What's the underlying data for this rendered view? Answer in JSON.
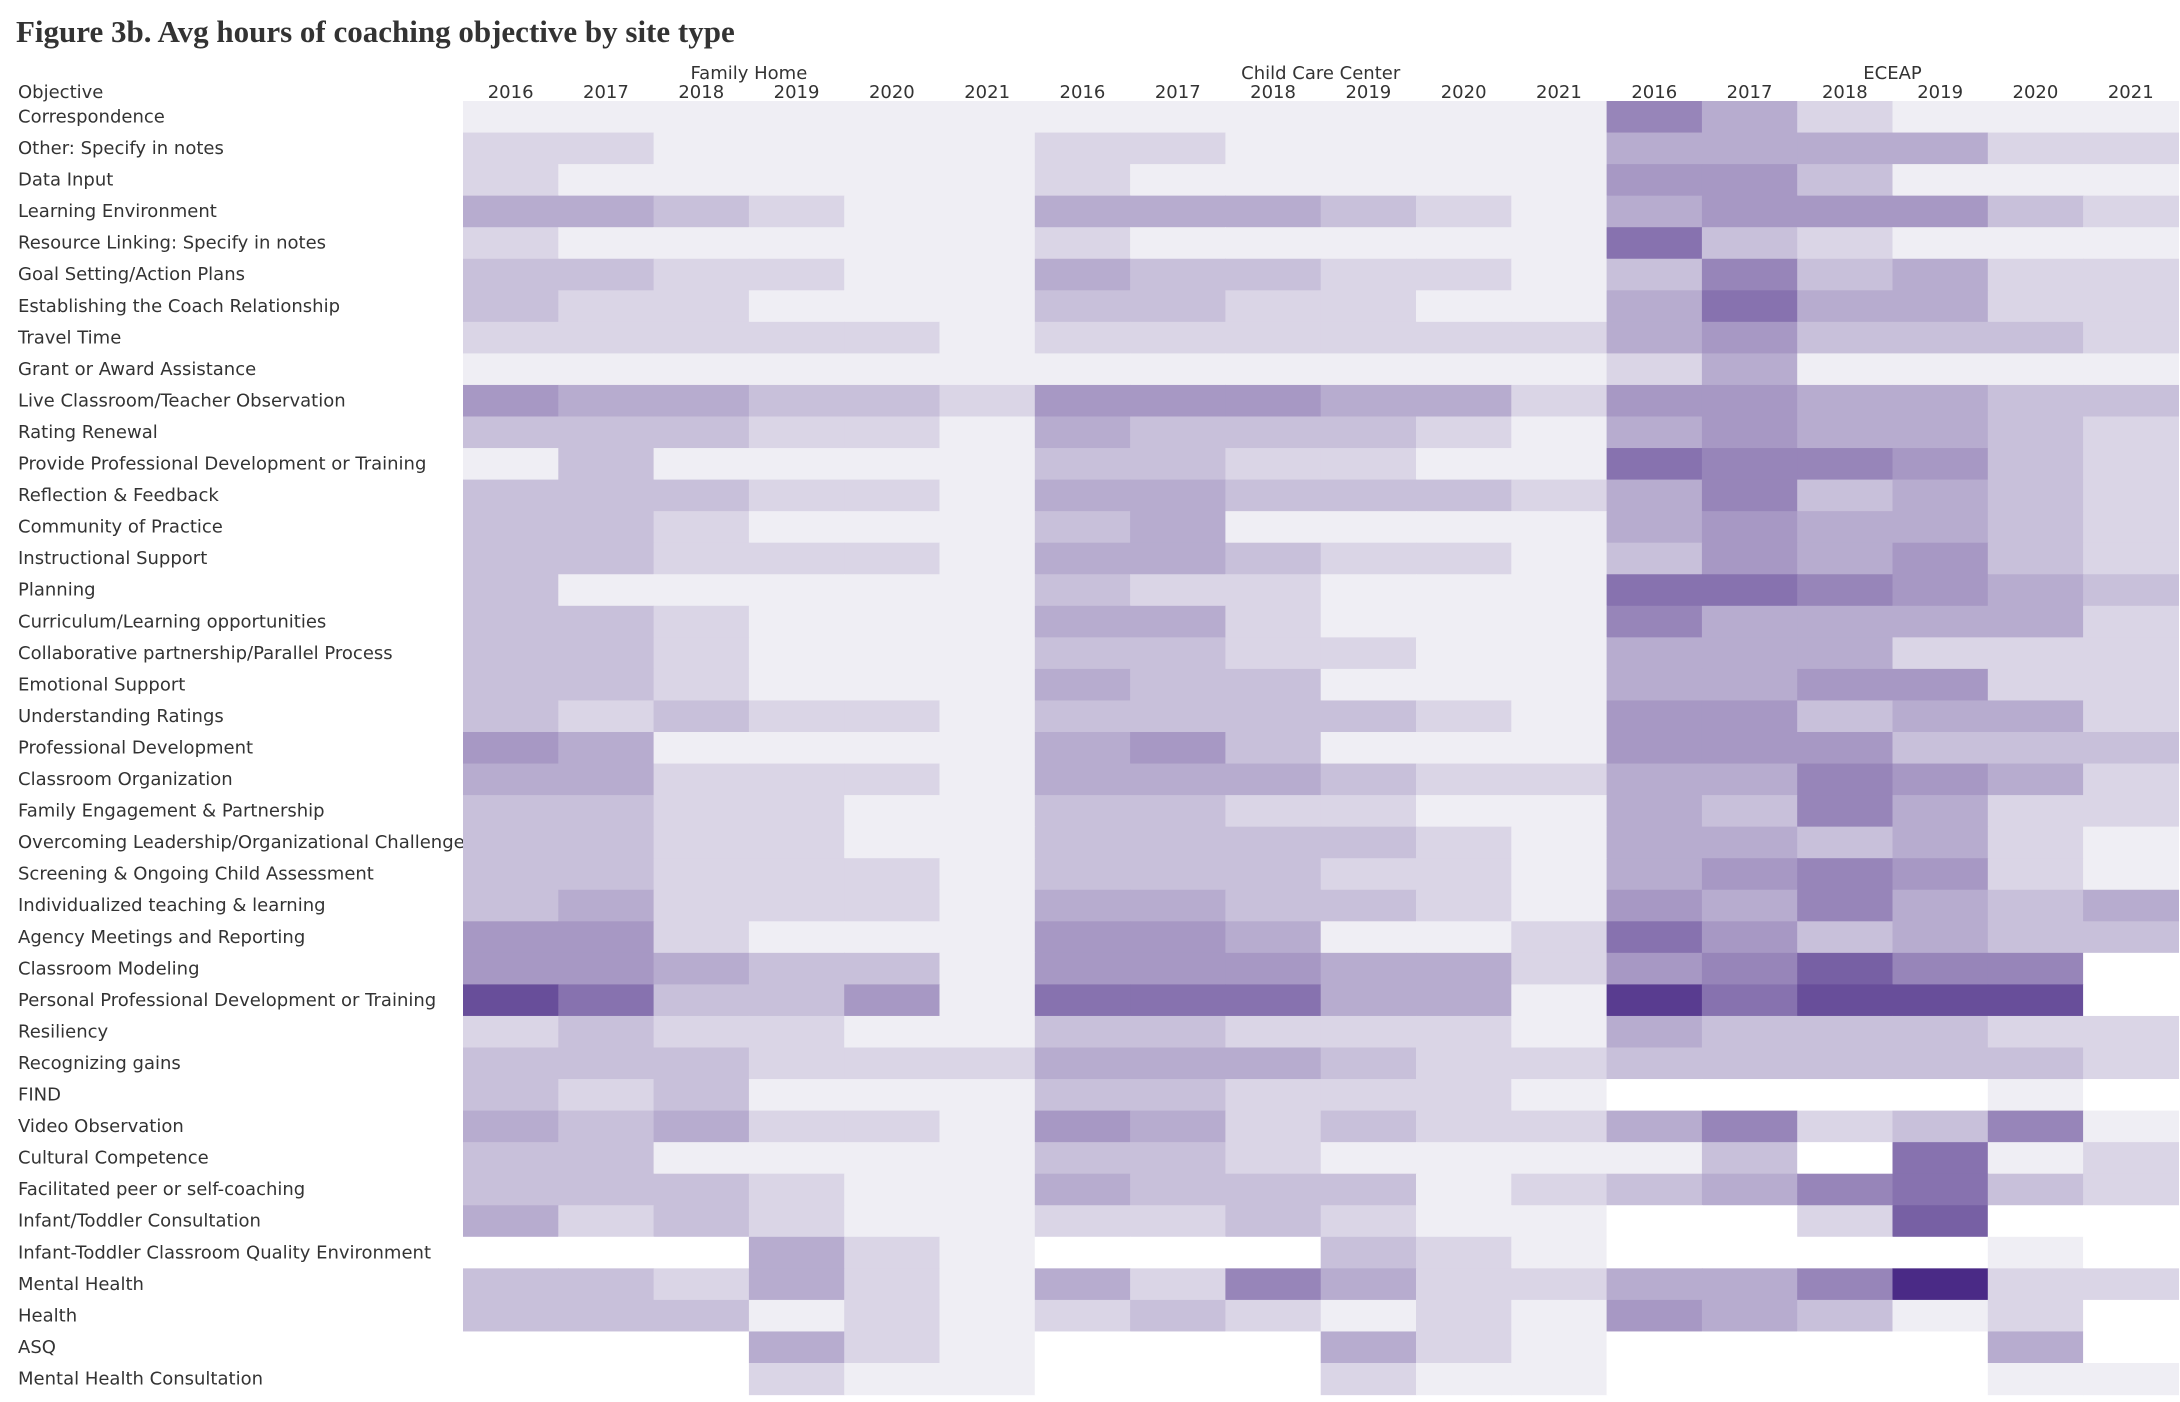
{
  "title": "Figure 3b. Avg hours of coaching objective by site type",
  "chart_data": {
    "type": "heatmap",
    "title": "Figure 3b. Avg hours of coaching objective by site type",
    "row_header": "Objective",
    "groups": [
      "Family Home",
      "Child Care Center",
      "ECEAP"
    ],
    "years": [
      "2016",
      "2017",
      "2018",
      "2019",
      "2020",
      "2021"
    ],
    "color_scale": {
      "low": "#efeef4",
      "high": "#4a2a86",
      "missing": "#ffffff"
    },
    "value_note": "approximate color intensity 0-10 (relative); null = no data",
    "rows": [
      {
        "objective": "Correspondence",
        "values": [
          0,
          0,
          0,
          0,
          0,
          0,
          0,
          0,
          0,
          0,
          0,
          0,
          5,
          3,
          1,
          0,
          0,
          0
        ]
      },
      {
        "objective": "Other: Specify in notes",
        "values": [
          1,
          1,
          0,
          0,
          0,
          0,
          1,
          1,
          0,
          0,
          0,
          0,
          3,
          3,
          3,
          3,
          1,
          1
        ]
      },
      {
        "objective": "Data Input",
        "values": [
          1,
          0,
          0,
          0,
          0,
          0,
          1,
          0,
          0,
          0,
          0,
          0,
          4,
          4,
          2,
          0,
          0,
          0
        ]
      },
      {
        "objective": "Learning Environment",
        "values": [
          3,
          3,
          2,
          1,
          0,
          0,
          3,
          3,
          3,
          2,
          1,
          0,
          3,
          4,
          4,
          4,
          2,
          1
        ]
      },
      {
        "objective": "Resource Linking: Specify in notes",
        "values": [
          1,
          0,
          0,
          0,
          0,
          0,
          1,
          0,
          0,
          0,
          0,
          0,
          6,
          2,
          1,
          0,
          0,
          0
        ]
      },
      {
        "objective": "Goal Setting/Action Plans",
        "values": [
          2,
          2,
          1,
          1,
          0,
          0,
          3,
          2,
          2,
          1,
          1,
          0,
          2,
          5,
          2,
          3,
          1,
          1
        ]
      },
      {
        "objective": "Establishing the Coach Relationship",
        "values": [
          2,
          1,
          1,
          0,
          0,
          0,
          2,
          2,
          1,
          1,
          0,
          0,
          3,
          6,
          3,
          3,
          1,
          1
        ]
      },
      {
        "objective": "Travel Time",
        "values": [
          1,
          1,
          1,
          1,
          1,
          0,
          1,
          1,
          1,
          1,
          1,
          1,
          3,
          4,
          2,
          2,
          2,
          1
        ]
      },
      {
        "objective": "Grant or Award Assistance",
        "values": [
          0,
          0,
          0,
          0,
          0,
          0,
          0,
          0,
          0,
          0,
          0,
          0,
          1,
          3,
          0,
          0,
          0,
          0
        ]
      },
      {
        "objective": "Live Classroom/Teacher Observation",
        "values": [
          4,
          3,
          3,
          2,
          2,
          1,
          4,
          4,
          4,
          3,
          3,
          1,
          4,
          4,
          3,
          3,
          2,
          2
        ]
      },
      {
        "objective": "Rating Renewal",
        "values": [
          2,
          2,
          2,
          1,
          1,
          0,
          3,
          2,
          2,
          2,
          1,
          0,
          3,
          4,
          3,
          3,
          2,
          1
        ]
      },
      {
        "objective": "Provide Professional Development or Training",
        "values": [
          0,
          2,
          0,
          0,
          0,
          0,
          2,
          2,
          1,
          1,
          0,
          0,
          6,
          5,
          5,
          4,
          2,
          1
        ]
      },
      {
        "objective": "Reflection & Feedback",
        "values": [
          2,
          2,
          2,
          1,
          1,
          0,
          3,
          3,
          2,
          2,
          2,
          1,
          3,
          5,
          2,
          3,
          2,
          1
        ]
      },
      {
        "objective": "Community of Practice",
        "values": [
          2,
          2,
          1,
          0,
          0,
          0,
          2,
          3,
          0,
          0,
          0,
          0,
          3,
          4,
          3,
          3,
          2,
          1
        ]
      },
      {
        "objective": "Instructional Support",
        "values": [
          2,
          2,
          1,
          1,
          1,
          0,
          3,
          3,
          2,
          1,
          1,
          0,
          2,
          4,
          3,
          4,
          2,
          1
        ]
      },
      {
        "objective": "Planning",
        "values": [
          2,
          0,
          0,
          0,
          0,
          0,
          2,
          1,
          1,
          0,
          0,
          0,
          6,
          6,
          5,
          4,
          3,
          2
        ]
      },
      {
        "objective": "Curriculum/Learning opportunities",
        "values": [
          2,
          2,
          1,
          0,
          0,
          0,
          3,
          3,
          1,
          0,
          0,
          0,
          5,
          3,
          3,
          3,
          3,
          1
        ]
      },
      {
        "objective": "Collaborative partnership/Parallel Process",
        "values": [
          2,
          2,
          1,
          0,
          0,
          0,
          2,
          2,
          1,
          1,
          0,
          0,
          3,
          3,
          3,
          1,
          1,
          1
        ]
      },
      {
        "objective": "Emotional Support",
        "values": [
          2,
          2,
          1,
          0,
          0,
          0,
          3,
          2,
          2,
          0,
          0,
          0,
          3,
          3,
          4,
          4,
          1,
          1
        ]
      },
      {
        "objective": "Understanding Ratings",
        "values": [
          2,
          1,
          2,
          1,
          1,
          0,
          2,
          2,
          2,
          2,
          1,
          0,
          4,
          4,
          2,
          3,
          3,
          1
        ]
      },
      {
        "objective": "Professional Development",
        "values": [
          4,
          3,
          0,
          0,
          0,
          0,
          3,
          4,
          2,
          0,
          0,
          0,
          4,
          4,
          4,
          2,
          2,
          2
        ]
      },
      {
        "objective": "Classroom Organization",
        "values": [
          3,
          3,
          1,
          1,
          1,
          0,
          3,
          3,
          3,
          2,
          1,
          1,
          3,
          3,
          5,
          4,
          3,
          1
        ]
      },
      {
        "objective": "Family Engagement & Partnership",
        "values": [
          2,
          2,
          1,
          1,
          0,
          0,
          2,
          2,
          1,
          1,
          0,
          0,
          3,
          2,
          5,
          3,
          1,
          1
        ]
      },
      {
        "objective": "Overcoming Leadership/Organizational Challenges",
        "values": [
          2,
          2,
          1,
          1,
          0,
          0,
          2,
          2,
          2,
          2,
          1,
          0,
          3,
          3,
          2,
          3,
          1,
          0
        ]
      },
      {
        "objective": "Screening & Ongoing Child Assessment",
        "values": [
          2,
          2,
          1,
          1,
          1,
          0,
          2,
          2,
          2,
          1,
          1,
          0,
          3,
          4,
          5,
          4,
          1,
          0
        ]
      },
      {
        "objective": "Individualized teaching & learning",
        "values": [
          2,
          3,
          1,
          1,
          1,
          0,
          3,
          3,
          2,
          2,
          1,
          0,
          4,
          3,
          5,
          3,
          2,
          3
        ]
      },
      {
        "objective": "Agency Meetings and Reporting",
        "values": [
          4,
          4,
          1,
          0,
          0,
          0,
          4,
          4,
          3,
          0,
          0,
          1,
          6,
          4,
          2,
          3,
          2,
          2
        ]
      },
      {
        "objective": "Classroom Modeling",
        "values": [
          4,
          4,
          3,
          2,
          2,
          0,
          4,
          4,
          4,
          3,
          3,
          1,
          4,
          5,
          7,
          5,
          5,
          null
        ]
      },
      {
        "objective": "Personal Professional Development or Training",
        "values": [
          8,
          6,
          2,
          2,
          4,
          0,
          6,
          6,
          6,
          3,
          3,
          0,
          9,
          6,
          8,
          8,
          8,
          null
        ]
      },
      {
        "objective": "Resiliency",
        "values": [
          1,
          2,
          1,
          1,
          0,
          0,
          2,
          2,
          1,
          1,
          1,
          0,
          3,
          2,
          2,
          2,
          1,
          1
        ]
      },
      {
        "objective": "Recognizing gains",
        "values": [
          2,
          2,
          2,
          1,
          1,
          1,
          3,
          3,
          3,
          2,
          1,
          1,
          2,
          2,
          2,
          2,
          2,
          1
        ]
      },
      {
        "objective": "FIND",
        "values": [
          2,
          1,
          2,
          0,
          0,
          0,
          2,
          2,
          1,
          1,
          1,
          0,
          null,
          null,
          null,
          null,
          0,
          null
        ]
      },
      {
        "objective": "Video Observation",
        "values": [
          3,
          2,
          3,
          1,
          1,
          0,
          4,
          3,
          1,
          2,
          1,
          1,
          3,
          5,
          1,
          2,
          5,
          0
        ]
      },
      {
        "objective": "Cultural Competence",
        "values": [
          2,
          2,
          0,
          0,
          0,
          0,
          2,
          2,
          1,
          0,
          0,
          0,
          0,
          2,
          null,
          6,
          0,
          1
        ]
      },
      {
        "objective": "Facilitated peer or self-coaching",
        "values": [
          2,
          2,
          2,
          1,
          0,
          0,
          3,
          2,
          2,
          2,
          0,
          1,
          2,
          3,
          5,
          6,
          2,
          1
        ]
      },
      {
        "objective": "Infant/Toddler Consultation",
        "values": [
          3,
          1,
          2,
          1,
          0,
          0,
          1,
          1,
          2,
          1,
          0,
          0,
          null,
          null,
          1,
          7,
          null,
          null
        ]
      },
      {
        "objective": "Infant-Toddler Classroom Quality Environment",
        "values": [
          null,
          null,
          null,
          3,
          1,
          0,
          null,
          null,
          null,
          2,
          1,
          0,
          null,
          null,
          null,
          null,
          0,
          null
        ]
      },
      {
        "objective": "Mental Health",
        "values": [
          2,
          2,
          1,
          3,
          1,
          0,
          3,
          1,
          5,
          3,
          1,
          1,
          3,
          3,
          5,
          10,
          1,
          1
        ]
      },
      {
        "objective": "Health",
        "values": [
          2,
          2,
          2,
          0,
          1,
          0,
          1,
          2,
          1,
          0,
          1,
          0,
          4,
          3,
          2,
          0,
          1,
          null
        ]
      },
      {
        "objective": "ASQ",
        "values": [
          null,
          null,
          null,
          3,
          1,
          0,
          null,
          null,
          null,
          3,
          1,
          0,
          null,
          null,
          null,
          null,
          3,
          null
        ]
      },
      {
        "objective": "Mental Health Consultation",
        "values": [
          null,
          null,
          null,
          1,
          0,
          0,
          null,
          null,
          null,
          1,
          0,
          0,
          null,
          null,
          null,
          null,
          0,
          0
        ]
      }
    ]
  }
}
